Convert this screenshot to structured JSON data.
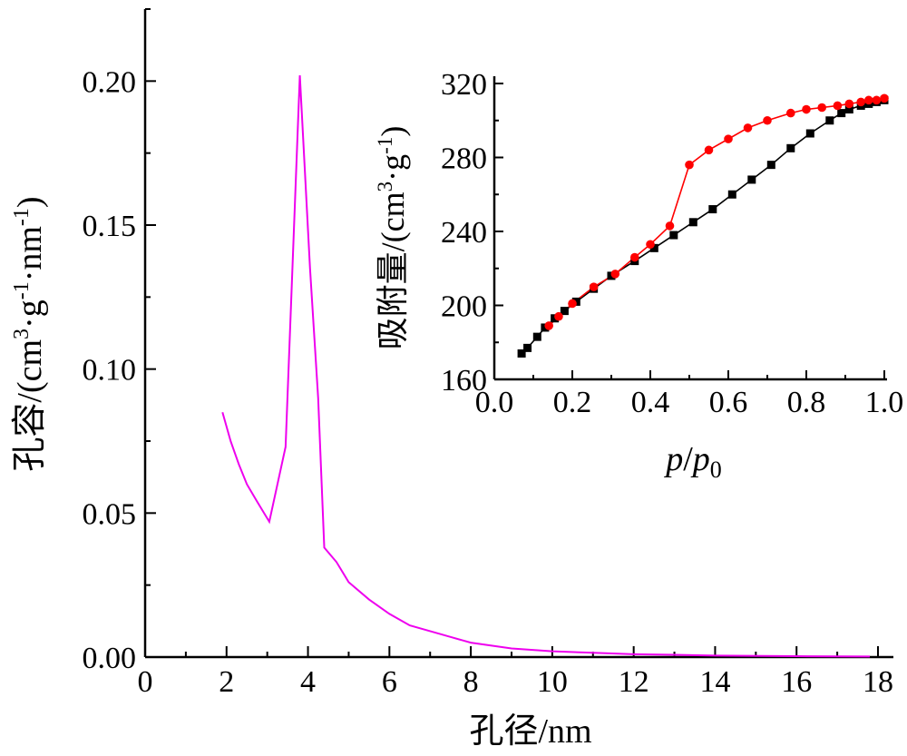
{
  "chart_data": [
    {
      "type": "line",
      "title": "",
      "xlabel": "孔径/nm",
      "ylabel": "孔容/(cm3·g-1·nm-1)",
      "ylabel_parts": {
        "a": "孔容/(cm",
        "b": "3",
        "c": "·g",
        "d": "-1",
        "e": "·nm",
        "f": "-1",
        "g": ")"
      },
      "xlim": [
        0,
        18
      ],
      "ylim": [
        0,
        0.225
      ],
      "xticks": [
        0,
        2,
        4,
        6,
        8,
        10,
        12,
        14,
        16,
        18
      ],
      "xtick_labels": [
        "0",
        "2",
        "4",
        "6",
        "8",
        "10",
        "12",
        "14",
        "16",
        "18"
      ],
      "yticks": [
        0,
        0.05,
        0.1,
        0.15,
        0.2
      ],
      "ytick_labels": [
        "0.00",
        "0.05",
        "0.10",
        "0.15",
        "0.20"
      ],
      "grid": false,
      "series": [
        {
          "color": "#ee00ee",
          "x": [
            1.9,
            2.1,
            2.3,
            2.5,
            2.75,
            3.05,
            3.45,
            3.8,
            4.05,
            4.25,
            4.4,
            4.7,
            5.0,
            5.5,
            6.0,
            6.5,
            7.0,
            7.5,
            8.0,
            9.0,
            10.0,
            11.0,
            12.0,
            13.0,
            14.0,
            16.0,
            17.8
          ],
          "y": [
            0.085,
            0.075,
            0.067,
            0.06,
            0.054,
            0.047,
            0.073,
            0.202,
            0.135,
            0.09,
            0.038,
            0.033,
            0.026,
            0.02,
            0.015,
            0.011,
            0.009,
            0.007,
            0.005,
            0.003,
            0.002,
            0.0015,
            0.001,
            0.0008,
            0.0005,
            0.0003,
            0.0002
          ]
        }
      ]
    },
    {
      "type": "line",
      "title": "",
      "xlabel": "p/p0",
      "xlabel_parts": {
        "p": "p",
        "slash": "/",
        "p0": "p",
        "sub": "0"
      },
      "ylabel": "吸附量/(cm3·g-1)",
      "ylabel_parts": {
        "a": "吸附量/(cm",
        "b": "3",
        "c": "·g",
        "d": "-1",
        "e": ")"
      },
      "xlim": [
        0,
        1.0
      ],
      "ylim": [
        160,
        320
      ],
      "xticks": [
        0,
        0.1,
        0.2,
        0.3,
        0.4,
        0.5,
        0.6,
        0.7,
        0.8,
        0.9,
        1.0
      ],
      "xtick_labels": [
        "0.0",
        "0.2",
        "0.4",
        "0.6",
        "0.8",
        "1.0"
      ],
      "xtick_label_values": [
        0,
        0.2,
        0.4,
        0.6,
        0.8,
        1.0
      ],
      "yticks": [
        160,
        200,
        240,
        280,
        320
      ],
      "ytick_labels": [
        "160",
        "200",
        "240",
        "280",
        "320"
      ],
      "grid": false,
      "series": [
        {
          "color": "#000000",
          "marker": "square",
          "x": [
            0.07,
            0.085,
            0.11,
            0.13,
            0.155,
            0.18,
            0.21,
            0.255,
            0.3,
            0.36,
            0.41,
            0.46,
            0.51,
            0.56,
            0.61,
            0.66,
            0.71,
            0.76,
            0.81,
            0.86,
            0.89,
            0.91,
            0.94,
            0.96,
            0.98,
            1.0
          ],
          "y": [
            174,
            177,
            183,
            188,
            193,
            197,
            202,
            209,
            216,
            224,
            231,
            238,
            245,
            252,
            260,
            268,
            276,
            285,
            293,
            300,
            304,
            306,
            308,
            309,
            310,
            311
          ]
        },
        {
          "color": "#ff0000",
          "marker": "circle",
          "x": [
            1.0,
            0.98,
            0.96,
            0.94,
            0.91,
            0.88,
            0.84,
            0.8,
            0.76,
            0.7,
            0.65,
            0.6,
            0.55,
            0.5,
            0.45,
            0.4,
            0.36,
            0.31,
            0.255,
            0.2,
            0.165,
            0.14
          ],
          "y": [
            312,
            311,
            311,
            310,
            309,
            308,
            307,
            306,
            304,
            300,
            296,
            290,
            284,
            276,
            243,
            233,
            226,
            217,
            210,
            201,
            194,
            189
          ]
        }
      ]
    }
  ]
}
